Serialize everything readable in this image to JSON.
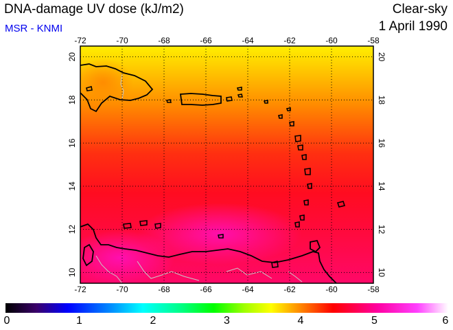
{
  "header": {
    "title": "DNA-damage UV dose (kJ/m2)",
    "subtitle": "MSR - KNMI",
    "sky_condition": "Clear-sky",
    "date": "1 April 1990"
  },
  "map": {
    "lon_range": [
      -72,
      -58
    ],
    "lat_range": [
      9.5,
      20.5
    ],
    "lon_ticks": [
      "-72",
      "-70",
      "-68",
      "-66",
      "-64",
      "-62",
      "-60",
      "-58"
    ],
    "lat_ticks": [
      "10",
      "12",
      "14",
      "16",
      "18",
      "20"
    ],
    "gridlines": "dotted",
    "colors": {
      "frame": "#000000",
      "coast": "#000000",
      "borders": "#c8c8c8"
    }
  },
  "colorbar": {
    "min": 0,
    "max": 6,
    "ticks": [
      "0",
      "1",
      "2",
      "3",
      "4",
      "5",
      "6"
    ],
    "colors": [
      "#000000",
      "#3a006a",
      "#0000ff",
      "#0090ff",
      "#00ffff",
      "#00ff80",
      "#00ff00",
      "#a0ff00",
      "#ffff00",
      "#ff8000",
      "#ff0000",
      "#ff00a0",
      "#ff40ff",
      "#ffffff"
    ]
  }
}
